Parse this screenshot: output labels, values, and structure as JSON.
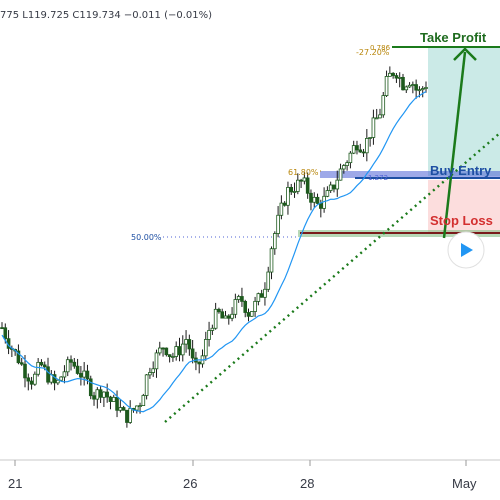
{
  "ohlc_header": "775  L119.725  C119.734  −0.011  (−0.01%)",
  "x_axis_labels": [
    "21",
    "26",
    "28",
    "May"
  ],
  "annotations": {
    "take_profit": "Take Profit",
    "buy_entry": "Buy Entry",
    "stop_loss": "Stop Loss",
    "fib_top_a": "0.786",
    "fib_top_b": "-27.20%",
    "fib_618": "61.80%",
    "fib_618_inner": "1.272",
    "fib_500": "50.00%"
  },
  "colors": {
    "bull": "#26a69a",
    "bear": "#ef5350",
    "candle_body": "#1e5a1e",
    "ma": "#2196f3",
    "trendline": "#1b7a1b",
    "take_profit_text": "#1e6b1e",
    "buy_entry_text": "#1e4fa3",
    "stop_loss_text": "#d32f2f",
    "fib_blue": "#4f63d6",
    "fib_gold": "#b8860b",
    "tp_zone": "#b9e3df",
    "sl_zone": "#fbd4d4",
    "play_button": "#2196f3"
  },
  "icons": {
    "play": "play-icon"
  },
  "chart_data": {
    "type": "candlestick",
    "x_labels": [
      "21",
      "26",
      "28",
      "May"
    ],
    "trend_support_x": [
      "26",
      "May"
    ],
    "levels": {
      "take_profit": 119.82,
      "fib_0786": 119.82,
      "buy_entry": 119.35,
      "fib_618": 119.36,
      "stop_loss": 119.17,
      "fib_500": 119.14
    },
    "price_range": [
      118.28,
      119.88
    ],
    "close_path": [
      118.7,
      118.63,
      118.58,
      118.52,
      118.48,
      118.55,
      118.5,
      118.46,
      118.52,
      118.56,
      118.52,
      118.48,
      118.42,
      118.45,
      118.4,
      118.38,
      118.33,
      118.36,
      118.4,
      118.53,
      118.58,
      118.63,
      118.58,
      118.61,
      118.66,
      118.52,
      118.58,
      118.71,
      118.76,
      118.72,
      118.78,
      118.82,
      118.76,
      118.8,
      118.86,
      119.04,
      119.16,
      119.26,
      119.28,
      119.3,
      119.24,
      119.2,
      119.23,
      119.28,
      119.35,
      119.4,
      119.46,
      119.44,
      119.52,
      119.58,
      119.72,
      119.76,
      119.7,
      119.72,
      119.66,
      119.7
    ]
  }
}
